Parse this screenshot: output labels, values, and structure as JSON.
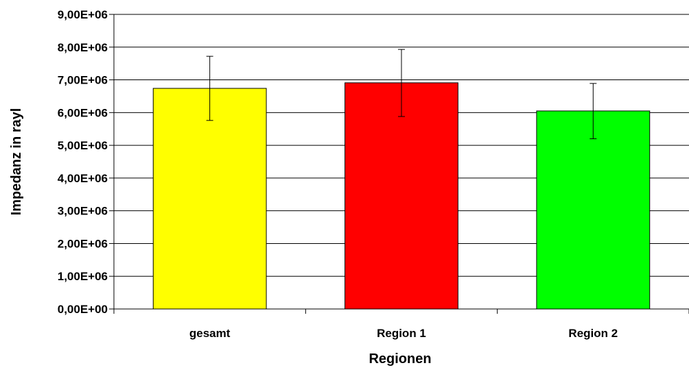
{
  "chart_data": {
    "type": "bar",
    "title": "",
    "xlabel": "Regionen",
    "ylabel": "Impedanz in rayl",
    "categories": [
      "gesamt",
      "Region 1",
      "Region 2"
    ],
    "values": [
      6740000,
      6910000,
      6050000
    ],
    "error_low": [
      5760000,
      5880000,
      5200000
    ],
    "error_high": [
      7720000,
      7930000,
      6890000
    ],
    "colors": [
      "#ffff00",
      "#ff0000",
      "#00ff00"
    ],
    "ylim": [
      0,
      9000000
    ],
    "yticks": [
      0,
      1000000,
      2000000,
      3000000,
      4000000,
      5000000,
      6000000,
      7000000,
      8000000,
      9000000
    ],
    "ytick_labels": [
      "0,00E+00",
      "1,00E+06",
      "2,00E+06",
      "3,00E+06",
      "4,00E+06",
      "5,00E+06",
      "6,00E+06",
      "7,00E+06",
      "8,00E+06",
      "9,00E+06"
    ],
    "grid": true,
    "legend": "none"
  }
}
